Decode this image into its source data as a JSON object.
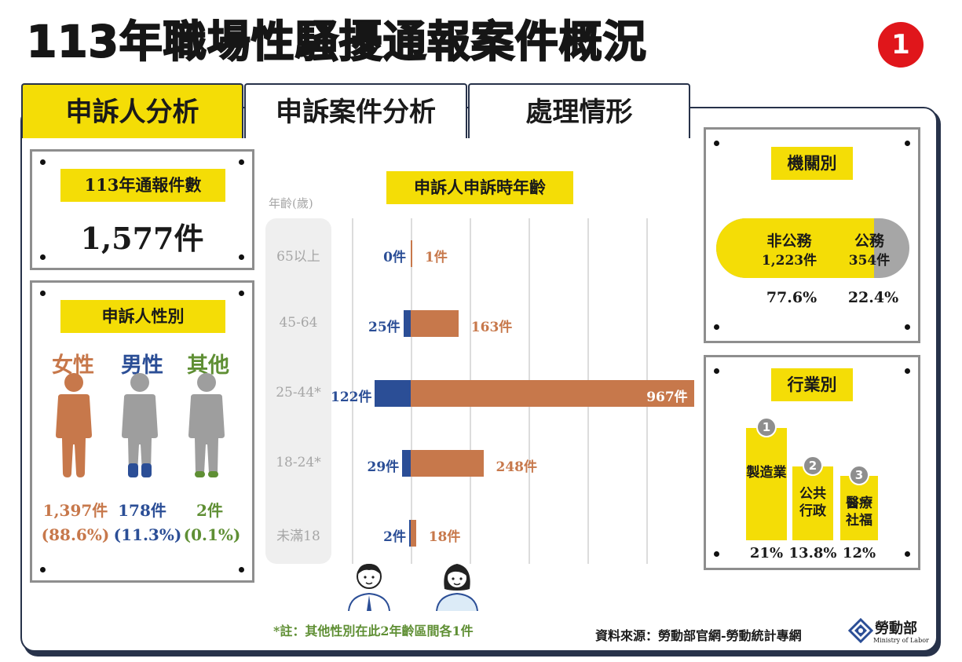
{
  "title": "113年職場性騷擾通報案件概況",
  "title_badge": "1",
  "tabs": [
    {
      "label": "申訴人分析",
      "active": true
    },
    {
      "label": "申訴案件分析",
      "active": false
    },
    {
      "label": "處理情形",
      "active": false
    }
  ],
  "total": {
    "label": "113年通報件數",
    "value": "1,577件"
  },
  "gender": {
    "label": "申訴人性別",
    "items": [
      {
        "name": "女性",
        "count": "1,397件",
        "pct": "(88.6%)",
        "color": "#c7784b",
        "icon": "female-person-icon"
      },
      {
        "name": "男性",
        "count": "178件",
        "pct": "(11.3%)",
        "color": "#2b4e96",
        "icon": "male-person-icon"
      },
      {
        "name": "其他",
        "count": "2件",
        "pct": "(0.1%)",
        "color": "#5f8f34",
        "icon": "other-person-icon"
      }
    ]
  },
  "age_chart": {
    "label": "申訴人申訴時年齡",
    "axis_label": "年齡(歲)",
    "note": "*註：其他性別在此2年齡區間各1件"
  },
  "chart_data": {
    "type": "bar",
    "orientation": "horizontal",
    "title": "申訴人申訴時年齡",
    "ylabel": "年齡(歲)",
    "categories": [
      "65以上",
      "45-64",
      "25-44*",
      "18-24*",
      "未滿18"
    ],
    "series": [
      {
        "name": "男性",
        "color": "#2b4e96",
        "values": [
          0,
          25,
          122,
          29,
          2
        ],
        "labels": [
          "0件",
          "25件",
          "122件",
          "29件",
          "2件"
        ]
      },
      {
        "name": "女性",
        "color": "#c7784b",
        "values": [
          1,
          163,
          967,
          248,
          18
        ],
        "labels": [
          "1件",
          "163件",
          "967件",
          "248件",
          "18件"
        ]
      }
    ],
    "grid": true
  },
  "agency": {
    "label": "機關別",
    "items": [
      {
        "name": "非公務",
        "count": "1,223件",
        "pct": "77.6%",
        "share": 0.776,
        "color": "#f4dd06"
      },
      {
        "name": "公務",
        "count": "354件",
        "pct": "22.4%",
        "share": 0.224,
        "color": "#a6a6a6"
      }
    ]
  },
  "industry": {
    "label": "行業別",
    "items": [
      {
        "rank": "1",
        "name": "製造業",
        "pct": "21%",
        "value": 21
      },
      {
        "rank": "2",
        "name": "公共行政",
        "pct": "13.8%",
        "value": 13.8
      },
      {
        "rank": "3",
        "name": "醫療社福",
        "pct": "12%",
        "value": 12
      }
    ]
  },
  "source": "資料來源：勞動部官網-勞動統計專網",
  "logo": {
    "name": "勞動部",
    "sub": "Ministry of Labor"
  }
}
